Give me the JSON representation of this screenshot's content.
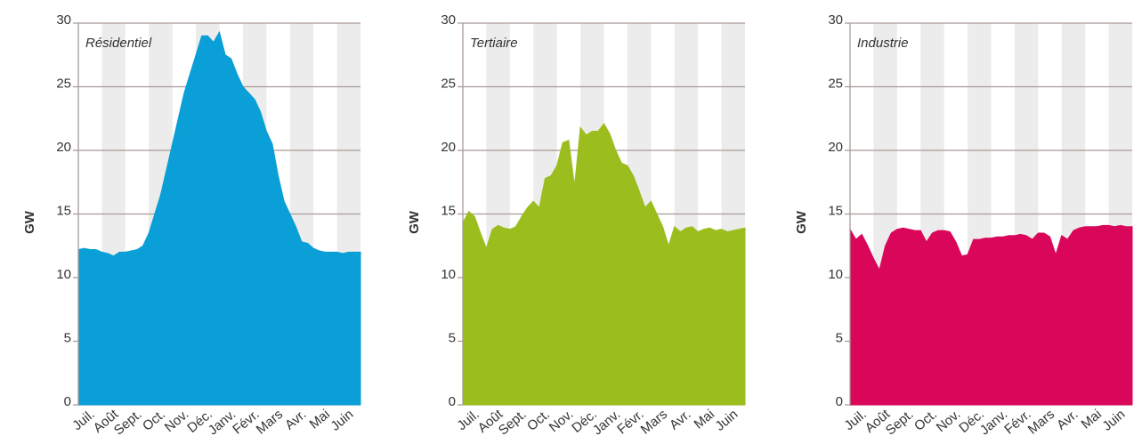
{
  "chart_data": [
    {
      "type": "area",
      "title": "Résidentiel",
      "ylabel": "GW",
      "color": "#0a9fd6",
      "xlim": [
        0,
        12
      ],
      "ylim": [
        0,
        30
      ],
      "yticks": [
        0,
        5,
        10,
        15,
        20,
        25,
        30
      ],
      "grid": true,
      "xticks": [
        {
          "value": 0.5,
          "label": "Juil."
        },
        {
          "value": 1.5,
          "label": "Août"
        },
        {
          "value": 2.5,
          "label": "Sept."
        },
        {
          "value": 3.5,
          "label": "Oct."
        },
        {
          "value": 4.5,
          "label": "Nov."
        },
        {
          "value": 5.5,
          "label": "Déc."
        },
        {
          "value": 6.5,
          "label": "Janv."
        },
        {
          "value": 7.5,
          "label": "Févr."
        },
        {
          "value": 8.5,
          "label": "Mars"
        },
        {
          "value": 9.5,
          "label": "Avr."
        },
        {
          "value": 10.5,
          "label": "Mai"
        },
        {
          "value": 11.5,
          "label": "Juin"
        }
      ],
      "x": [
        0,
        0.25,
        0.5,
        0.75,
        1,
        1.25,
        1.5,
        1.75,
        2,
        2.25,
        2.5,
        2.75,
        3,
        3.25,
        3.5,
        3.75,
        4,
        4.25,
        4.5,
        4.75,
        5,
        5.25,
        5.5,
        5.75,
        6,
        6.25,
        6.5,
        6.75,
        7,
        7.25,
        7.5,
        7.75,
        8,
        8.25,
        8.5,
        8.75,
        9,
        9.25,
        9.5,
        9.75,
        10,
        10.25,
        10.5,
        10.75,
        11,
        11.25,
        11.5,
        11.75,
        12
      ],
      "values": [
        12.2,
        12.3,
        12.2,
        12.2,
        12.0,
        11.9,
        11.7,
        12.0,
        12.0,
        12.1,
        12.2,
        12.5,
        13.5,
        15.0,
        16.5,
        18.5,
        20.5,
        22.5,
        24.5,
        26.0,
        27.5,
        29.0,
        29.0,
        28.5,
        29.3,
        27.5,
        27.2,
        26.0,
        25.0,
        24.5,
        24.0,
        23.0,
        21.5,
        20.5,
        18.0,
        16.0,
        15.0,
        14.0,
        12.8,
        12.7,
        12.3,
        12.1,
        12.0,
        12.0,
        12.0,
        11.9,
        12.0,
        12.0,
        12.0
      ]
    },
    {
      "type": "area",
      "title": "Tertiaire",
      "ylabel": "GW",
      "color": "#9bbd1e",
      "xlim": [
        0,
        12
      ],
      "ylim": [
        0,
        30
      ],
      "yticks": [
        0,
        5,
        10,
        15,
        20,
        25,
        30
      ],
      "grid": true,
      "xticks": [
        {
          "value": 0.5,
          "label": "Juil."
        },
        {
          "value": 1.5,
          "label": "Août"
        },
        {
          "value": 2.5,
          "label": "Sept."
        },
        {
          "value": 3.5,
          "label": "Oct."
        },
        {
          "value": 4.5,
          "label": "Nov."
        },
        {
          "value": 5.5,
          "label": "Déc."
        },
        {
          "value": 6.5,
          "label": "Janv."
        },
        {
          "value": 7.5,
          "label": "Févr."
        },
        {
          "value": 8.5,
          "label": "Mars"
        },
        {
          "value": 9.5,
          "label": "Avr."
        },
        {
          "value": 10.5,
          "label": "Mai"
        },
        {
          "value": 11.5,
          "label": "Juin"
        }
      ],
      "x": [
        0,
        0.25,
        0.5,
        0.75,
        1,
        1.25,
        1.5,
        1.75,
        2,
        2.25,
        2.5,
        2.75,
        3,
        3.25,
        3.5,
        3.75,
        4,
        4.25,
        4.5,
        4.75,
        5,
        5.25,
        5.5,
        5.75,
        6,
        6.25,
        6.5,
        6.75,
        7,
        7.25,
        7.5,
        7.75,
        8,
        8.25,
        8.5,
        8.75,
        9,
        9.25,
        9.5,
        9.75,
        10,
        10.25,
        10.5,
        10.75,
        11,
        11.25,
        11.5,
        11.75,
        12
      ],
      "values": [
        14.3,
        15.2,
        14.8,
        13.5,
        12.3,
        13.8,
        14.1,
        13.9,
        13.8,
        14.0,
        14.8,
        15.5,
        16.0,
        15.5,
        17.8,
        18.0,
        18.8,
        20.6,
        20.8,
        17.2,
        21.8,
        21.2,
        21.5,
        21.5,
        22.1,
        21.3,
        20.0,
        19.0,
        18.8,
        18.0,
        16.8,
        15.5,
        16.0,
        15.0,
        14.0,
        12.5,
        14.0,
        13.6,
        13.9,
        14.0,
        13.6,
        13.8,
        13.9,
        13.7,
        13.8,
        13.6,
        13.7,
        13.8,
        13.9
      ]
    },
    {
      "type": "area",
      "title": "Industrie",
      "ylabel": "GW",
      "color": "#d9065a",
      "xlim": [
        0,
        12
      ],
      "ylim": [
        0,
        30
      ],
      "yticks": [
        0,
        5,
        10,
        15,
        20,
        25,
        30
      ],
      "grid": true,
      "xticks": [
        {
          "value": 0.5,
          "label": "Juil."
        },
        {
          "value": 1.5,
          "label": "Août"
        },
        {
          "value": 2.5,
          "label": "Sept."
        },
        {
          "value": 3.5,
          "label": "Oct."
        },
        {
          "value": 4.5,
          "label": "Nov."
        },
        {
          "value": 5.5,
          "label": "Déc."
        },
        {
          "value": 6.5,
          "label": "Janv."
        },
        {
          "value": 7.5,
          "label": "Févr."
        },
        {
          "value": 8.5,
          "label": "Mars"
        },
        {
          "value": 9.5,
          "label": "Avr."
        },
        {
          "value": 10.5,
          "label": "Mai"
        },
        {
          "value": 11.5,
          "label": "Juin"
        }
      ],
      "x": [
        0,
        0.25,
        0.5,
        0.75,
        1,
        1.25,
        1.5,
        1.75,
        2,
        2.25,
        2.5,
        2.75,
        3,
        3.25,
        3.5,
        3.75,
        4,
        4.25,
        4.5,
        4.75,
        5,
        5.25,
        5.5,
        5.75,
        6,
        6.25,
        6.5,
        6.75,
        7,
        7.25,
        7.5,
        7.75,
        8,
        8.25,
        8.5,
        8.75,
        9,
        9.25,
        9.5,
        9.75,
        10,
        10.25,
        10.5,
        10.75,
        11,
        11.25,
        11.5,
        11.75,
        12
      ],
      "values": [
        13.8,
        13.0,
        13.4,
        12.5,
        11.5,
        10.6,
        12.5,
        13.5,
        13.8,
        13.9,
        13.8,
        13.7,
        13.7,
        12.8,
        13.5,
        13.7,
        13.7,
        13.6,
        12.8,
        11.7,
        11.8,
        13.0,
        13.0,
        13.1,
        13.1,
        13.2,
        13.2,
        13.3,
        13.3,
        13.4,
        13.3,
        13.0,
        13.5,
        13.5,
        13.2,
        11.8,
        13.3,
        13.0,
        13.7,
        13.9,
        14.0,
        14.0,
        14.0,
        14.1,
        14.1,
        14.0,
        14.1,
        14.0,
        14.0
      ]
    }
  ]
}
